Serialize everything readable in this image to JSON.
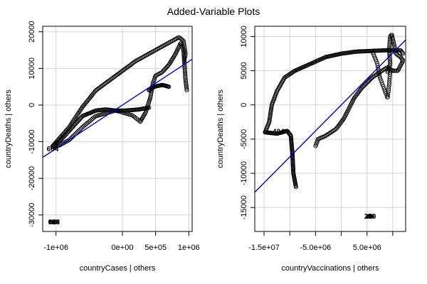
{
  "figure_title": "Added-Variable Plots",
  "colors": {
    "fit_line": "#0000cd",
    "points": "#000000",
    "grid": "#d3d3d3"
  },
  "chart_data": [
    {
      "type": "scatter",
      "id": "left",
      "title": "",
      "xlabel": "countryCases | others",
      "ylabel": "countryDeaths  | others",
      "xlim": [
        -1200000,
        1050000
      ],
      "ylim": [
        -34500,
        21500
      ],
      "xticks": [
        -1000000,
        0,
        500000,
        1000000
      ],
      "xtick_labels": [
        "-1e+06",
        "0e+00",
        "5e+05",
        "1e+06"
      ],
      "yticks": [
        -30000,
        -20000,
        -10000,
        0,
        10000,
        20000
      ],
      "ytick_labels": [
        "-30000",
        "-20000",
        "-10000",
        "0",
        "10000",
        "20000"
      ],
      "grid": true,
      "fit_line": {
        "slope": 0.0119,
        "intercept": 0
      },
      "point_labels": [
        {
          "text": "628",
          "x": -1030000,
          "y": -31800
        },
        {
          "text": "604",
          "x": -1050000,
          "y": -11800
        }
      ],
      "series": [
        {
          "paths": [
            {
              "points": [
                [
                  -1080000,
                  -31900
                ],
                [
                  -1030000,
                  -31900
                ],
                [
                  -990000,
                  -31900
                ]
              ],
              "n": 10
            },
            {
              "points": [
                [
                  -1050000,
                  -11500
                ],
                [
                  -900000,
                  -9000
                ],
                [
                  -750000,
                  -6000
                ],
                [
                  -600000,
                  -3000
                ],
                [
                  -400000,
                  -1500
                ],
                [
                  -250000,
                  -1200
                ],
                [
                  -100000,
                  -1500
                ],
                [
                  50000,
                  -1500
                ],
                [
                  250000,
                  -1200
                ],
                [
                  400000,
                  -700
                ]
              ],
              "n": 110
            },
            {
              "points": [
                [
                  -1050000,
                  -11200
                ],
                [
                  -800000,
                  -6000
                ],
                [
                  -600000,
                  -500
                ],
                [
                  -400000,
                  4000
                ],
                [
                  -100000,
                  8000
                ],
                [
                  200000,
                  12000
                ],
                [
                  500000,
                  15000
                ],
                [
                  700000,
                  17000
                ],
                [
                  850000,
                  18500
                ],
                [
                  920000,
                  17500
                ],
                [
                  950000,
                  14000
                ],
                [
                  930000,
                  12000
                ]
              ],
              "n": 150
            },
            {
              "points": [
                [
                  -1050000,
                  -11500
                ],
                [
                  -950000,
                  -11000
                ],
                [
                  -800000,
                  -9500
                ],
                [
                  -600000,
                  -6000
                ],
                [
                  -400000,
                  -3000
                ],
                [
                  -100000,
                  -1500
                ],
                [
                  150000,
                  -2800
                ],
                [
                  270000,
                  -4500
                ]
              ],
              "n": 70
            },
            {
              "points": [
                [
                  270000,
                  -4500
                ],
                [
                  350000,
                  -2000
                ],
                [
                  420000,
                  2000
                ],
                [
                  460000,
                  6000
                ],
                [
                  500000,
                  8000
                ],
                [
                  600000,
                  9000
                ],
                [
                  700000,
                  11000
                ],
                [
                  800000,
                  14000
                ],
                [
                  880000,
                  17000
                ],
                [
                  920000,
                  15000
                ],
                [
                  950000,
                  7000
                ],
                [
                  970000,
                  4000
                ]
              ],
              "n": 100
            },
            {
              "points": [
                [
                  400000,
                  4000
                ],
                [
                  480000,
                  5000
                ],
                [
                  600000,
                  5500
                ],
                [
                  700000,
                  5000
                ]
              ],
              "n": 30
            }
          ]
        }
      ]
    },
    {
      "type": "scatter",
      "id": "right",
      "title": "",
      "xlabel": "countryVaccinations | others",
      "ylabel": "countryDeaths  | others",
      "xlim": [
        -16800000,
        12500000
      ],
      "ylim": [
        -18500,
        11500
      ],
      "xticks": [
        -15000000,
        -10000000,
        -5000000,
        0,
        5000000,
        10000000
      ],
      "xtick_labels": [
        "-1.5e+07",
        "",
        "-5.0e+06",
        "",
        "5.0e+06",
        ""
      ],
      "yticks": [
        -15000,
        -10000,
        -5000,
        0,
        5000,
        10000
      ],
      "ytick_labels": [
        "-15000",
        "-10000",
        "-5000",
        "0",
        "5000",
        "10000"
      ],
      "grid": true,
      "fit_line": {
        "slope": 0.00076,
        "intercept": 0
      },
      "point_labels": [
        {
          "text": "250",
          "x": 5600000,
          "y": -16200
        },
        {
          "text": "404",
          "x": -12200000,
          "y": -3800
        }
      ],
      "series": [
        {
          "paths": [
            {
              "points": [
                [
                  5200000,
                  -16300
                ],
                [
                  5600000,
                  -16300
                ],
                [
                  6000000,
                  -16300
                ]
              ],
              "n": 10
            },
            {
              "points": [
                [
                  -14800000,
                  -4000
                ],
                [
                  -14000000,
                  -2500
                ],
                [
                  -13500000,
                  0
                ],
                [
                  -12500000,
                  2000
                ],
                [
                  -11000000,
                  4000
                ],
                [
                  -9000000,
                  5000
                ],
                [
                  -6000000,
                  6000
                ],
                [
                  -3000000,
                  7000
                ],
                [
                  0,
                  7500
                ],
                [
                  3000000,
                  7800
                ],
                [
                  6000000,
                  7900
                ],
                [
                  9000000,
                  8000
                ],
                [
                  11500000,
                  8000
                ],
                [
                  12000000,
                  7500
                ]
              ],
              "n": 170
            },
            {
              "points": [
                [
                  -14800000,
                  -4000
                ],
                [
                  -12500000,
                  -4200
                ],
                [
                  -10500000,
                  -3800
                ],
                [
                  -9800000,
                  -4500
                ],
                [
                  -9500000,
                  -7000
                ],
                [
                  -9300000,
                  -10000
                ],
                [
                  -8800000,
                  -12000
                ]
              ],
              "n": 90
            },
            {
              "points": [
                [
                  -5000000,
                  -6000
                ],
                [
                  -4500000,
                  -5000
                ],
                [
                  -3000000,
                  -4500
                ],
                [
                  -1000000,
                  -3500
                ],
                [
                  500000,
                  -2000
                ],
                [
                  1500000,
                  -500
                ],
                [
                  2500000,
                  1000
                ],
                [
                  4000000,
                  2500
                ],
                [
                  6000000,
                  4000
                ],
                [
                  7500000,
                  4800
                ],
                [
                  9000000,
                  5500
                ],
                [
                  10000000,
                  5000
                ]
              ],
              "n": 90
            },
            {
              "points": [
                [
                  9000000,
                  4800
                ],
                [
                  9500000,
                  6000
                ],
                [
                  9300000,
                  8000
                ],
                [
                  9500000,
                  10000
                ],
                [
                  9800000,
                  10300
                ],
                [
                  10200000,
                  9000
                ],
                [
                  10600000,
                  7500
                ],
                [
                  11500000,
                  7000
                ],
                [
                  12000000,
                  6500
                ],
                [
                  11000000,
                  5000
                ],
                [
                  10000000,
                  5000
                ]
              ],
              "n": 60
            },
            {
              "points": [
                [
                  6000000,
                  7900
                ],
                [
                  7000000,
                  6000
                ],
                [
                  7500000,
                  4000
                ],
                [
                  8500000,
                  2000
                ],
                [
                  9000000,
                  1000
                ],
                [
                  9300000,
                  3000
                ],
                [
                  9500000,
                  5000
                ]
              ],
              "n": 40
            }
          ]
        }
      ]
    }
  ]
}
